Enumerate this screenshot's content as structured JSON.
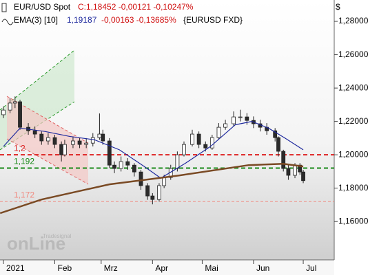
{
  "chart_data": {
    "type": "candlestick",
    "symbol_label": "EUR/USD Spot",
    "quote_label": "C:1,18452 -0,00121 -0,10247%",
    "indicator_label": "EMA(3) [10]",
    "indicator_value_label": "1,19187",
    "indicator_change_label": "-0,00163 -0,13685%",
    "source_label": "{EURUSD FXD}",
    "currency": "$",
    "watermark": "onLine",
    "watermark_sub": "Tradesignal",
    "up_color": "#ffffff",
    "down_color": "#2b2b2b",
    "x": [
      0,
      4,
      7,
      10,
      15,
      19,
      23,
      27,
      31,
      35,
      37,
      42,
      46,
      50,
      54,
      58,
      60,
      64,
      67,
      71,
      75,
      79,
      83,
      87,
      90,
      94,
      97,
      101,
      105,
      109,
      114,
      118,
      122,
      126,
      130,
      134,
      139,
      143,
      147,
      151,
      155,
      159,
      164,
      166,
      169,
      172,
      176,
      179,
      181
    ],
    "open": [
      1.224,
      1.2268,
      1.231,
      1.2318,
      1.2165,
      1.2144,
      1.2124,
      1.2083,
      1.2103,
      1.2062,
      1.2,
      1.2062,
      1.2083,
      1.2062,
      1.207,
      1.2103,
      1.2124,
      1.2083,
      1.1938,
      1.1918,
      1.1959,
      1.1938,
      1.1897,
      1.1815,
      1.1753,
      1.1732,
      1.1815,
      1.1864,
      1.1918,
      1.2,
      1.2062,
      1.2124,
      1.2062,
      1.2041,
      1.2103,
      1.2165,
      1.2186,
      1.2227,
      1.2227,
      1.2206,
      1.2186,
      1.2165,
      1.2144,
      1.2103,
      1.2021,
      1.1918,
      1.1877,
      1.1938,
      1.1897
    ],
    "high": [
      1.229,
      1.234,
      1.235,
      1.233,
      1.219,
      1.217,
      1.214,
      1.213,
      1.212,
      1.208,
      1.209,
      1.211,
      1.21,
      1.21,
      1.213,
      1.2248,
      1.215,
      1.21,
      1.196,
      1.199,
      1.198,
      1.195,
      1.191,
      1.183,
      1.177,
      1.183,
      1.188,
      1.194,
      1.202,
      1.208,
      1.215,
      1.214,
      1.208,
      1.212,
      1.219,
      1.221,
      1.226,
      1.227,
      1.225,
      1.223,
      1.221,
      1.219,
      1.216,
      1.211,
      1.203,
      1.194,
      1.195,
      1.195,
      1.191
    ],
    "low": [
      1.222,
      1.225,
      1.228,
      1.215,
      1.212,
      1.21,
      1.206,
      1.206,
      1.204,
      1.196,
      1.199,
      1.204,
      1.204,
      1.204,
      1.205,
      1.209,
      1.206,
      1.192,
      1.189,
      1.19,
      1.191,
      1.187,
      1.179,
      1.173,
      1.1703,
      1.172,
      1.18,
      1.185,
      1.19,
      1.199,
      1.205,
      1.204,
      1.202,
      1.203,
      1.209,
      1.215,
      1.217,
      1.22,
      1.218,
      1.216,
      1.214,
      1.212,
      1.208,
      1.199,
      1.19,
      1.185,
      1.186,
      1.188,
      1.183
    ],
    "close": [
      1.2268,
      1.231,
      1.2318,
      1.2165,
      1.2144,
      1.2124,
      1.2083,
      1.2103,
      1.2062,
      1.2,
      1.2062,
      1.2083,
      1.2062,
      1.207,
      1.2103,
      1.2124,
      1.2083,
      1.1938,
      1.1918,
      1.1959,
      1.1938,
      1.1897,
      1.1815,
      1.1753,
      1.1732,
      1.1815,
      1.1864,
      1.1918,
      1.2,
      1.2062,
      1.2124,
      1.2062,
      1.2041,
      1.2103,
      1.2165,
      1.2186,
      1.2227,
      1.2227,
      1.2206,
      1.2186,
      1.2165,
      1.2144,
      1.2103,
      1.2021,
      1.1918,
      1.1877,
      1.1938,
      1.1897,
      1.1845
    ],
    "series": [
      {
        "color": "#1f2a9e",
        "x": [
          0,
          10,
          25,
          40,
          55,
          70,
          85,
          95,
          110,
          125,
          140,
          150,
          160,
          170,
          181
        ],
        "values": [
          1.205,
          1.216,
          1.214,
          1.211,
          1.209,
          1.203,
          1.193,
          1.186,
          1.195,
          1.205,
          1.218,
          1.22,
          1.216,
          1.21,
          1.203
        ]
      },
      {
        "color": "#7a4a24",
        "x": [
          -2,
          23,
          64,
          106,
          148,
          169,
          181
        ],
        "values": [
          1.165,
          1.1732,
          1.1823,
          1.1876,
          1.1938,
          1.1946,
          1.193
        ]
      }
    ],
    "levels": [
      {
        "value": 1.2,
        "label": "1,2",
        "color": "#dd2020"
      },
      {
        "value": 1.192,
        "label": "1,192",
        "color": "#1a8a1a"
      },
      {
        "value": 1.172,
        "label": "1,172",
        "color": "#f08a80"
      }
    ],
    "xlim": [
      -2.08,
      199.7
    ],
    "xticks": [
      {
        "value": 0,
        "label": "2021"
      },
      {
        "value": 31,
        "label": "Feb"
      },
      {
        "value": 59,
        "label": "Mrz"
      },
      {
        "value": 90,
        "label": "Apr"
      },
      {
        "value": 120,
        "label": "Mai"
      },
      {
        "value": 151,
        "label": "Jun"
      },
      {
        "value": 181,
        "label": "Jul"
      }
    ],
    "ylim": [
      1.137,
      1.2928
    ],
    "yticks": [
      {
        "value": 1.16,
        "label": "1,16000"
      },
      {
        "value": 1.18,
        "label": "1,18000"
      },
      {
        "value": 1.2,
        "label": "1,20000"
      },
      {
        "value": 1.22,
        "label": "1,22000"
      },
      {
        "value": 1.24,
        "label": "1,24000"
      },
      {
        "value": 1.26,
        "label": "1,26000"
      },
      {
        "value": 1.28,
        "label": "1,28000"
      }
    ]
  }
}
